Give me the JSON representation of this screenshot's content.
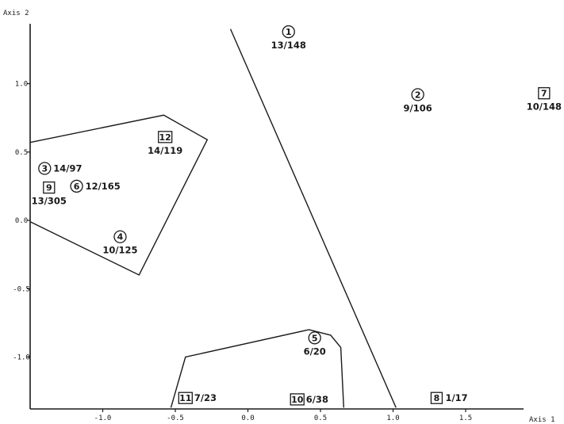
{
  "chart_data": {
    "type": "scatter",
    "title": "",
    "xlabel": "Axis 1",
    "ylabel": "Axis 2",
    "xlim": [
      -1.5,
      2.15
    ],
    "ylim": [
      -1.38,
      1.45
    ],
    "x_ticks": [
      {
        "value": -1.0,
        "label": "-1.0"
      },
      {
        "value": -0.5,
        "label": "-0.5"
      },
      {
        "value": 0.0,
        "label": "0.0"
      },
      {
        "value": 0.5,
        "label": "0.5"
      },
      {
        "value": 1.0,
        "label": "1.0"
      },
      {
        "value": 1.5,
        "label": "1.5"
      }
    ],
    "y_ticks": [
      {
        "value": 1.0,
        "label": "1.0"
      },
      {
        "value": 0.5,
        "label": "0.5"
      },
      {
        "value": 0.0,
        "label": "0.0"
      },
      {
        "value": -0.5,
        "label": "-0.5"
      },
      {
        "value": -1.0,
        "label": "-1.0"
      }
    ],
    "grid": false,
    "points": [
      {
        "id": "1",
        "marker": "circle",
        "label": "13/148",
        "label_position": "below",
        "x": 0.28,
        "y": 1.38
      },
      {
        "id": "2",
        "marker": "circle",
        "label": "9/106",
        "label_position": "below",
        "x": 1.17,
        "y": 0.92
      },
      {
        "id": "3",
        "marker": "circle",
        "label": "14/97",
        "label_position": "right",
        "x": -1.4,
        "y": 0.38
      },
      {
        "id": "4",
        "marker": "circle",
        "label": "10/125",
        "label_position": "below",
        "x": -0.88,
        "y": -0.12
      },
      {
        "id": "5",
        "marker": "circle",
        "label": "6/20",
        "label_position": "below",
        "x": 0.46,
        "y": -0.86
      },
      {
        "id": "6",
        "marker": "circle",
        "label": "12/165",
        "label_position": "right",
        "x": -1.18,
        "y": 0.25
      },
      {
        "id": "7",
        "marker": "square",
        "label": "10/148",
        "label_position": "below",
        "x": 2.04,
        "y": 0.93
      },
      {
        "id": "8",
        "marker": "square",
        "label": "1/17",
        "label_position": "right",
        "x": 1.3,
        "y": -1.3
      },
      {
        "id": "9",
        "marker": "square",
        "label": "13/305",
        "label_position": "below",
        "x": -1.37,
        "y": 0.24
      },
      {
        "id": "10",
        "marker": "square",
        "label": "6/38",
        "label_position": "right",
        "x": 0.34,
        "y": -1.31
      },
      {
        "id": "11",
        "marker": "square",
        "label": "7/23",
        "label_position": "right",
        "x": -0.43,
        "y": -1.3
      },
      {
        "id": "12",
        "marker": "square",
        "label": "14/119",
        "label_position": "below",
        "x": -0.57,
        "y": 0.61
      }
    ],
    "polygons": [
      {
        "name": "left-group",
        "vertices": [
          [
            -1.5,
            0.57
          ],
          [
            -0.58,
            0.77
          ],
          [
            -0.28,
            0.59
          ],
          [
            -0.75,
            -0.4
          ],
          [
            -1.5,
            -0.01
          ]
        ]
      },
      {
        "name": "bottom-group",
        "vertices": [
          [
            -0.53,
            -1.37
          ],
          [
            -0.43,
            -1.0
          ],
          [
            0.42,
            -0.8
          ],
          [
            0.57,
            -0.84
          ],
          [
            0.64,
            -0.93
          ],
          [
            0.66,
            -1.37
          ]
        ]
      }
    ],
    "lines": [
      {
        "name": "separator-line",
        "from": [
          -0.12,
          1.4
        ],
        "to": [
          1.02,
          -1.37
        ]
      }
    ]
  }
}
